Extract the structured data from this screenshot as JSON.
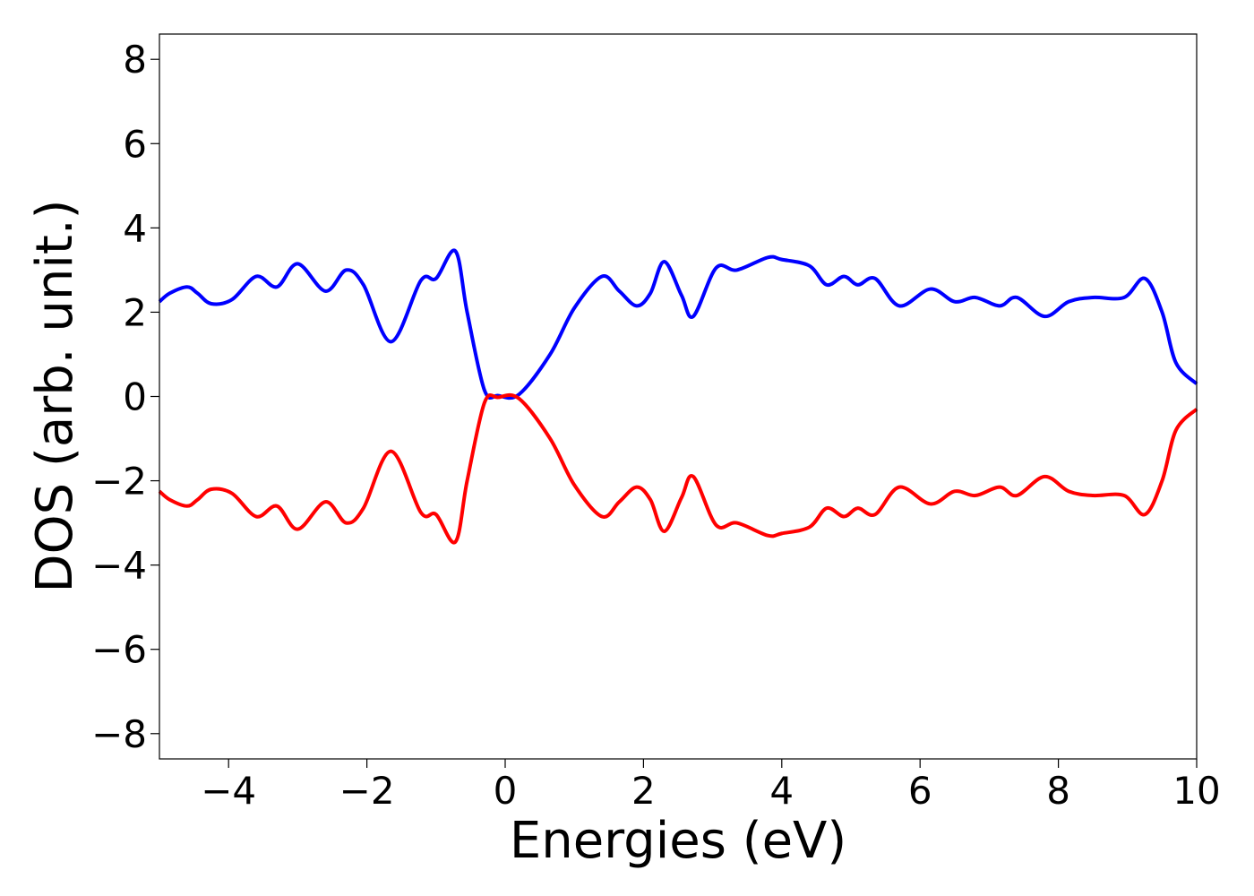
{
  "chart_data": {
    "type": "line",
    "title": "",
    "xlabel": "Energies (eV)",
    "ylabel": "DOS (arb. unit.)",
    "xlim": [
      -5,
      10
    ],
    "ylim": [
      -8.6,
      8.6
    ],
    "xticks": [
      -4,
      -2,
      0,
      2,
      4,
      6,
      8,
      10
    ],
    "xtick_labels": [
      "−4",
      "−2",
      "0",
      "2",
      "4",
      "6",
      "8",
      "10"
    ],
    "yticks": [
      8,
      6,
      4,
      2,
      0,
      -2,
      -4,
      -6,
      -8
    ],
    "ytick_labels": [
      "8",
      "6",
      "4",
      "2",
      "0",
      "−2",
      "−4",
      "−6",
      "−8"
    ],
    "grid": false,
    "legend": "none",
    "series": [
      {
        "color": "#0000ff",
        "points": [
          [
            -5.0,
            2.25
          ],
          [
            -4.85,
            2.45
          ],
          [
            -4.6,
            2.6
          ],
          [
            -4.45,
            2.45
          ],
          [
            -4.25,
            2.2
          ],
          [
            -3.95,
            2.3
          ],
          [
            -3.6,
            2.85
          ],
          [
            -3.3,
            2.6
          ],
          [
            -3.0,
            3.15
          ],
          [
            -2.6,
            2.5
          ],
          [
            -2.3,
            3.0
          ],
          [
            -2.05,
            2.65
          ],
          [
            -1.65,
            1.3
          ],
          [
            -1.22,
            2.75
          ],
          [
            -1.0,
            2.8
          ],
          [
            -0.72,
            3.45
          ],
          [
            -0.55,
            2.0
          ],
          [
            -0.3,
            0.15
          ],
          [
            -0.1,
            0.02
          ],
          [
            0.2,
            0.05
          ],
          [
            0.65,
            1.0
          ],
          [
            1.0,
            2.1
          ],
          [
            1.4,
            2.85
          ],
          [
            1.65,
            2.5
          ],
          [
            1.9,
            2.15
          ],
          [
            2.1,
            2.45
          ],
          [
            2.3,
            3.2
          ],
          [
            2.55,
            2.4
          ],
          [
            2.72,
            1.9
          ],
          [
            3.05,
            3.05
          ],
          [
            3.35,
            3.0
          ],
          [
            3.8,
            3.3
          ],
          [
            4.0,
            3.25
          ],
          [
            4.4,
            3.1
          ],
          [
            4.65,
            2.65
          ],
          [
            4.9,
            2.85
          ],
          [
            5.1,
            2.65
          ],
          [
            5.35,
            2.8
          ],
          [
            5.7,
            2.15
          ],
          [
            6.15,
            2.55
          ],
          [
            6.5,
            2.25
          ],
          [
            6.8,
            2.35
          ],
          [
            7.15,
            2.15
          ],
          [
            7.4,
            2.35
          ],
          [
            7.8,
            1.9
          ],
          [
            8.15,
            2.25
          ],
          [
            8.5,
            2.35
          ],
          [
            8.95,
            2.35
          ],
          [
            9.25,
            2.8
          ],
          [
            9.5,
            2.0
          ],
          [
            9.7,
            0.8
          ],
          [
            10.0,
            0.3
          ]
        ]
      },
      {
        "color": "#ff0000",
        "points": [
          [
            -5.0,
            -2.25
          ],
          [
            -4.85,
            -2.45
          ],
          [
            -4.6,
            -2.6
          ],
          [
            -4.45,
            -2.45
          ],
          [
            -4.25,
            -2.2
          ],
          [
            -3.95,
            -2.3
          ],
          [
            -3.6,
            -2.85
          ],
          [
            -3.3,
            -2.6
          ],
          [
            -3.0,
            -3.15
          ],
          [
            -2.6,
            -2.5
          ],
          [
            -2.3,
            -3.0
          ],
          [
            -2.05,
            -2.65
          ],
          [
            -1.65,
            -1.3
          ],
          [
            -1.22,
            -2.75
          ],
          [
            -1.0,
            -2.8
          ],
          [
            -0.72,
            -3.45
          ],
          [
            -0.55,
            -2.0
          ],
          [
            -0.3,
            -0.15
          ],
          [
            -0.1,
            -0.02
          ],
          [
            0.2,
            -0.05
          ],
          [
            0.65,
            -1.0
          ],
          [
            1.0,
            -2.1
          ],
          [
            1.4,
            -2.85
          ],
          [
            1.65,
            -2.5
          ],
          [
            1.9,
            -2.15
          ],
          [
            2.1,
            -2.45
          ],
          [
            2.3,
            -3.2
          ],
          [
            2.55,
            -2.4
          ],
          [
            2.72,
            -1.9
          ],
          [
            3.05,
            -3.05
          ],
          [
            3.35,
            -3.0
          ],
          [
            3.8,
            -3.3
          ],
          [
            4.0,
            -3.25
          ],
          [
            4.4,
            -3.1
          ],
          [
            4.65,
            -2.65
          ],
          [
            4.9,
            -2.85
          ],
          [
            5.1,
            -2.65
          ],
          [
            5.35,
            -2.8
          ],
          [
            5.7,
            -2.15
          ],
          [
            6.15,
            -2.55
          ],
          [
            6.5,
            -2.25
          ],
          [
            6.8,
            -2.35
          ],
          [
            7.15,
            -2.15
          ],
          [
            7.4,
            -2.35
          ],
          [
            7.8,
            -1.9
          ],
          [
            8.15,
            -2.25
          ],
          [
            8.5,
            -2.35
          ],
          [
            8.95,
            -2.35
          ],
          [
            9.25,
            -2.8
          ],
          [
            9.5,
            -2.0
          ],
          [
            9.7,
            -0.8
          ],
          [
            10.0,
            -0.3
          ]
        ]
      }
    ]
  }
}
